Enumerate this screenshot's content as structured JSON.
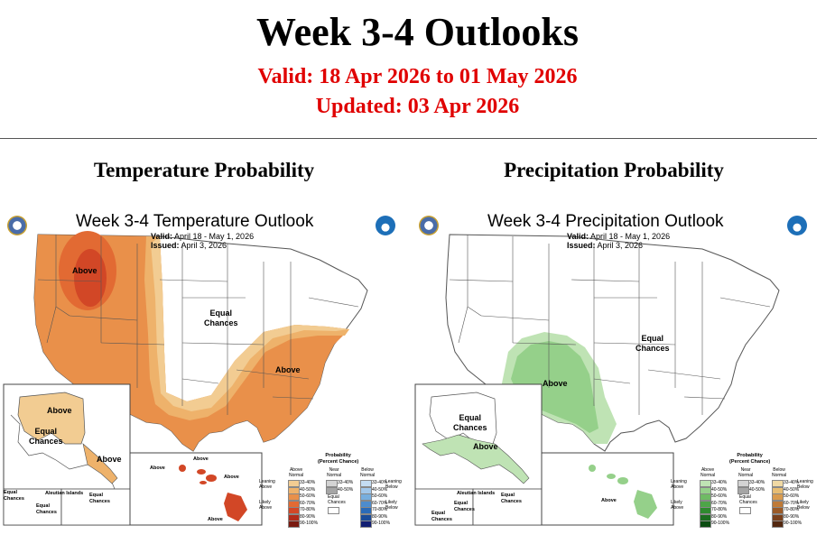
{
  "page": {
    "title": "Week 3-4 Outlooks",
    "valid": "Valid: 18 Apr 2026 to 01 May 2026",
    "updated": "Updated: 03 Apr 2026"
  },
  "temperature": {
    "section_title": "Temperature Probability",
    "map_title": "Week 3-4 Temperature Outlook",
    "valid_label": "Valid:",
    "valid_value": "April 18 - May 1, 2026",
    "issued_label": "Issued:",
    "issued_value": "April 3, 2026",
    "labels": {
      "above_nw": "Above",
      "equal_central": "Equal\nChances",
      "above_se": "Above",
      "above_ak": "Above",
      "equal_ak": "Equal\nChances",
      "above_ak_se": "Above",
      "above_hi_1": "Above",
      "above_hi_2": "Above",
      "above_hi_3": "Above",
      "above_hi_4": "Above",
      "aleutian": "Aleutian Islands",
      "equal_aleut": "Equal\nChances",
      "equal_aleut2": "Equal\nChances",
      "equal_aleut3": "Equal\nChances"
    },
    "legend": {
      "title": "Probability\n(Percent Chance)",
      "col_above": "Above\nNormal",
      "col_near": "Near\nNormal",
      "col_below": "Below\nNormal",
      "leaning_above": "Leaning\nAbove",
      "likely_above": "Likely\nAbove",
      "leaning_below": "Leaning\nBelow",
      "likely_below": "Likely\nBelow",
      "equal": "Equal\nChances",
      "ranges": [
        "33-40%",
        "40-50%",
        "50-60%",
        "60-70%",
        "70-80%",
        "80-90%",
        "90-100%"
      ],
      "near_ranges": [
        "33-40%",
        "40-50%"
      ],
      "above_colors": [
        "#f2cc92",
        "#eeb26b",
        "#e9904a",
        "#e26a33",
        "#d24726",
        "#b12b1a",
        "#7a1a10"
      ],
      "near_colors": [
        "#d3d3d3",
        "#a5a5a5"
      ],
      "below_colors": [
        "#c4dcf2",
        "#a1c7ea",
        "#77aede",
        "#4d8ccd",
        "#2b6bb8",
        "#1b4c99",
        "#121f73"
      ]
    }
  },
  "precipitation": {
    "section_title": "Precipitation Probability",
    "map_title": "Week 3-4 Precipitation Outlook",
    "valid_label": "Valid:",
    "valid_value": "April 18 - May 1, 2026",
    "issued_label": "Issued:",
    "issued_value": "April 3, 2026",
    "labels": {
      "above_sw": "Above",
      "equal_east": "Equal\nChances",
      "equal_ak": "Equal\nChances",
      "above_ak": "Above",
      "above_hi": "Above",
      "aleutian": "Aleutian Islands",
      "equal_aleut": "Equal\nChances",
      "equal_aleut2": "Equal\nChances",
      "equal_aleut3": "Equal\nChances"
    },
    "legend": {
      "title": "Probability\n(Percent Chance)",
      "col_above": "Above\nNormal",
      "col_near": "Near\nNormal",
      "col_below": "Below\nNormal",
      "leaning_above": "Leaning\nAbove",
      "likely_above": "Likely\nAbove",
      "leaning_below": "Leaning\nBelow",
      "likely_below": "Likely\nBelow",
      "equal": "Equal\nChances",
      "ranges": [
        "33-40%",
        "40-50%",
        "50-60%",
        "60-70%",
        "70-80%",
        "80-90%",
        "90-100%"
      ],
      "near_ranges": [
        "33-40%",
        "40-50%"
      ],
      "above_colors": [
        "#bfe3b4",
        "#95d08a",
        "#6fbb64",
        "#4ea548",
        "#2f8a2f",
        "#1c6d20",
        "#0c4d12"
      ],
      "near_colors": [
        "#d3d3d3",
        "#a5a5a5"
      ],
      "below_colors": [
        "#f0d9a4",
        "#e7bd73",
        "#d99b4e",
        "#bf7a37",
        "#9b5a26",
        "#7a401b",
        "#532810"
      ]
    }
  }
}
